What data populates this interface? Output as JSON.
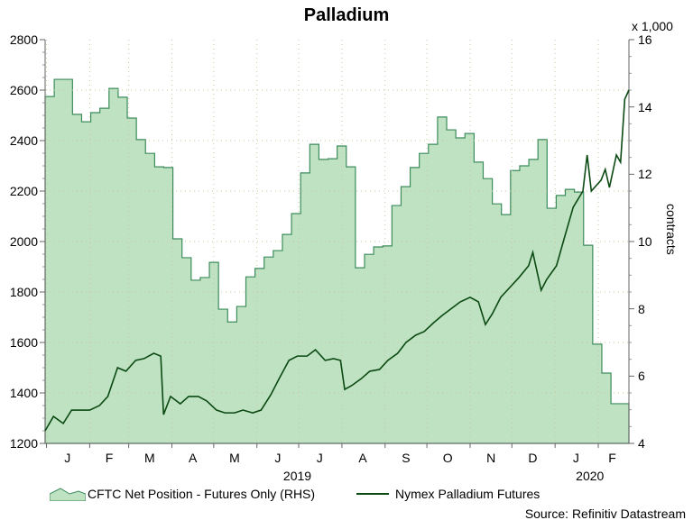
{
  "chart_data": {
    "type": "area+line",
    "title": "Palladium",
    "x_unit": "days since 2019-01-01",
    "xlim": [
      -1,
      418
    ],
    "x_ticks": [
      {
        "label": "J",
        "day": 15
      },
      {
        "label": "F",
        "day": 45
      },
      {
        "label": "M",
        "day": 74
      },
      {
        "label": "A",
        "day": 105
      },
      {
        "label": "M",
        "day": 135
      },
      {
        "label": "J",
        "day": 166
      },
      {
        "label": "J",
        "day": 196
      },
      {
        "label": "A",
        "day": 227
      },
      {
        "label": "S",
        "day": 258
      },
      {
        "label": "O",
        "day": 288
      },
      {
        "label": "N",
        "day": 319
      },
      {
        "label": "D",
        "day": 349
      },
      {
        "label": "J",
        "day": 380
      },
      {
        "label": "F",
        "day": 406
      }
    ],
    "month_boundaries": [
      0,
      31,
      59,
      90,
      120,
      151,
      181,
      212,
      243,
      273,
      304,
      334,
      365,
      396
    ],
    "years": [
      {
        "label": "2019",
        "day": 180
      },
      {
        "label": "2020",
        "day": 390
      }
    ],
    "left_axis": {
      "ylim": [
        1200,
        2800
      ],
      "ticks": [
        "1200",
        "1400",
        "1600",
        "1800",
        "2000",
        "2200",
        "2400",
        "2600",
        "2800"
      ]
    },
    "right_axis": {
      "ylim": [
        4,
        16
      ],
      "ticks": [
        "4",
        "6",
        "8",
        "10",
        "12",
        "14",
        "16"
      ],
      "multiplier_label": "x 1,000",
      "label": "contracts"
    },
    "series": [
      {
        "name": "CFTC Net Position - Futures Only (RHS)",
        "kind": "area-step",
        "axis": "right",
        "color": "#3c8c5c",
        "fill": "#bfe2c2",
        "start_day": -1,
        "step_days": 6.55,
        "values": [
          14.31,
          14.82,
          14.82,
          13.78,
          13.56,
          13.83,
          13.96,
          14.55,
          14.29,
          13.67,
          13.03,
          12.62,
          12.22,
          12.2,
          10.08,
          9.52,
          8.85,
          8.93,
          9.38,
          7.99,
          7.61,
          8.07,
          8.95,
          9.2,
          9.54,
          9.73,
          10.21,
          10.83,
          12.04,
          12.89,
          12.44,
          12.46,
          12.84,
          12.22,
          9.22,
          9.62,
          9.84,
          9.87,
          11.07,
          11.63,
          12.2,
          12.62,
          12.89,
          13.7,
          13.32,
          13.08,
          13.21,
          12.36,
          11.87,
          11.12,
          10.8,
          12.11,
          12.25,
          12.44,
          13.03,
          10.99,
          11.37,
          11.55,
          11.47,
          9.89,
          6.95,
          6.09,
          5.18,
          5.18,
          5.18
        ]
      },
      {
        "name": "Nymex Palladium Futures",
        "kind": "line",
        "axis": "left",
        "color": "#0b4a12",
        "points": [
          [
            -1,
            1250
          ],
          [
            5,
            1307
          ],
          [
            12,
            1279
          ],
          [
            18,
            1332
          ],
          [
            25,
            1332
          ],
          [
            31,
            1332
          ],
          [
            38,
            1350
          ],
          [
            44,
            1386
          ],
          [
            51,
            1500
          ],
          [
            57,
            1486
          ],
          [
            64,
            1529
          ],
          [
            70,
            1536
          ],
          [
            77,
            1557
          ],
          [
            82,
            1546
          ],
          [
            84,
            1314
          ],
          [
            89,
            1386
          ],
          [
            96,
            1357
          ],
          [
            102,
            1386
          ],
          [
            109,
            1386
          ],
          [
            115,
            1368
          ],
          [
            122,
            1332
          ],
          [
            128,
            1321
          ],
          [
            135,
            1321
          ],
          [
            141,
            1332
          ],
          [
            148,
            1321
          ],
          [
            154,
            1332
          ],
          [
            161,
            1393
          ],
          [
            167,
            1457
          ],
          [
            174,
            1529
          ],
          [
            180,
            1546
          ],
          [
            187,
            1546
          ],
          [
            193,
            1571
          ],
          [
            200,
            1529
          ],
          [
            206,
            1536
          ],
          [
            211,
            1529
          ],
          [
            214,
            1414
          ],
          [
            219,
            1429
          ],
          [
            226,
            1457
          ],
          [
            232,
            1486
          ],
          [
            239,
            1493
          ],
          [
            245,
            1529
          ],
          [
            252,
            1557
          ],
          [
            258,
            1600
          ],
          [
            265,
            1629
          ],
          [
            271,
            1643
          ],
          [
            278,
            1679
          ],
          [
            284,
            1707
          ],
          [
            291,
            1736
          ],
          [
            297,
            1761
          ],
          [
            304,
            1779
          ],
          [
            310,
            1761
          ],
          [
            315,
            1671
          ],
          [
            320,
            1714
          ],
          [
            326,
            1779
          ],
          [
            333,
            1821
          ],
          [
            339,
            1857
          ],
          [
            346,
            1904
          ],
          [
            349,
            1957
          ],
          [
            355,
            1807
          ],
          [
            359,
            1850
          ],
          [
            366,
            1904
          ],
          [
            372,
            2021
          ],
          [
            378,
            2136
          ],
          [
            385,
            2200
          ],
          [
            388,
            2343
          ],
          [
            391,
            2200
          ],
          [
            398,
            2243
          ],
          [
            401,
            2286
          ],
          [
            404,
            2214
          ],
          [
            409,
            2343
          ],
          [
            412,
            2314
          ],
          [
            415,
            2564
          ],
          [
            418,
            2600
          ]
        ]
      }
    ],
    "legend_placement": "bottom",
    "source": "Source: Refinitiv Datastream"
  }
}
